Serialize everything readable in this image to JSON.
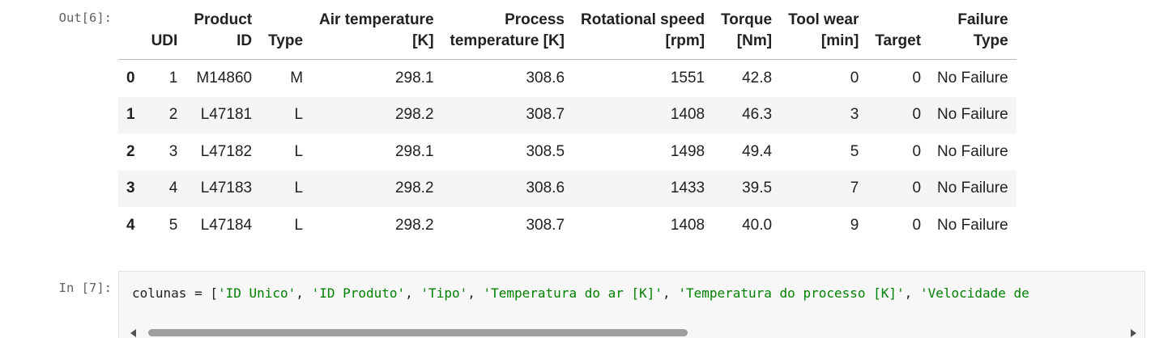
{
  "output_prompt": "Out[6]:",
  "input_prompt": "In [7]:",
  "table": {
    "columns": [
      {
        "lines": [
          "UDI"
        ]
      },
      {
        "lines": [
          "Product",
          "ID"
        ]
      },
      {
        "lines": [
          "Type"
        ]
      },
      {
        "lines": [
          "Air temperature",
          "[K]"
        ]
      },
      {
        "lines": [
          "Process",
          "temperature [K]"
        ]
      },
      {
        "lines": [
          "Rotational speed",
          "[rpm]"
        ]
      },
      {
        "lines": [
          "Torque",
          "[Nm]"
        ]
      },
      {
        "lines": [
          "Tool wear",
          "[min]"
        ]
      },
      {
        "lines": [
          "Target"
        ]
      },
      {
        "lines": [
          "Failure",
          "Type"
        ]
      }
    ],
    "rows": [
      {
        "index": "0",
        "cells": [
          "1",
          "M14860",
          "M",
          "298.1",
          "308.6",
          "1551",
          "42.8",
          "0",
          "0",
          "No Failure"
        ]
      },
      {
        "index": "1",
        "cells": [
          "2",
          "L47181",
          "L",
          "298.2",
          "308.7",
          "1408",
          "46.3",
          "3",
          "0",
          "No Failure"
        ]
      },
      {
        "index": "2",
        "cells": [
          "3",
          "L47182",
          "L",
          "298.1",
          "308.5",
          "1498",
          "49.4",
          "5",
          "0",
          "No Failure"
        ]
      },
      {
        "index": "3",
        "cells": [
          "4",
          "L47183",
          "L",
          "298.2",
          "308.6",
          "1433",
          "39.5",
          "7",
          "0",
          "No Failure"
        ]
      },
      {
        "index": "4",
        "cells": [
          "5",
          "L47184",
          "L",
          "298.2",
          "308.7",
          "1408",
          "40.0",
          "9",
          "0",
          "No Failure"
        ]
      }
    ]
  },
  "code": {
    "tokens": [
      {
        "t": "colunas = [",
        "k": "plain"
      },
      {
        "t": "'ID Unico'",
        "k": "str"
      },
      {
        "t": ", ",
        "k": "plain"
      },
      {
        "t": "'ID Produto'",
        "k": "str"
      },
      {
        "t": ", ",
        "k": "plain"
      },
      {
        "t": "'Tipo'",
        "k": "str"
      },
      {
        "t": ", ",
        "k": "plain"
      },
      {
        "t": "'Temperatura do ar [K]'",
        "k": "str"
      },
      {
        "t": ", ",
        "k": "plain"
      },
      {
        "t": "'Temperatura do processo [K]'",
        "k": "str"
      },
      {
        "t": ", ",
        "k": "plain"
      },
      {
        "t": "'Velocidade de",
        "k": "str"
      }
    ],
    "string_color": "#008000"
  },
  "scrollbar": {
    "position_fraction": 0.0,
    "visible_fraction": 0.55
  }
}
